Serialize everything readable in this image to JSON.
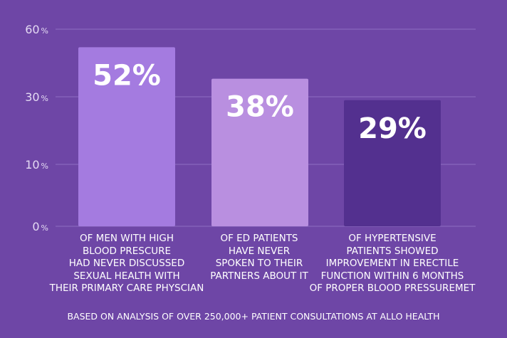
{
  "chart_data": {
    "type": "bar",
    "title": "",
    "xlabel": "",
    "ylabel": "",
    "y_ticks": [
      {
        "value": 0,
        "label": "0%"
      },
      {
        "value": 10,
        "label": "10%"
      },
      {
        "value": 30,
        "label": "30%"
      },
      {
        "value": 60,
        "label": "60%"
      }
    ],
    "grid": true,
    "categories": [
      [
        "OF MEN WITH HIGH",
        "BLOOD PRESCURE",
        "HAD NEVER DISCUSSED",
        "SEXUAL HEALTH WITH",
        "THEIR PRIMARY CARE PHYSCIAN"
      ],
      [
        "OF ED PATIENTS",
        "HAVE NEVER",
        "SPOKEN TO THEIR",
        "PARTNERS ABOUT IT"
      ],
      [
        "OF HYPERTENSIVE",
        "PATIENTS SHOWED",
        "IMPROVEMENT IN ERECTILE",
        "FUNCTION WITHIN 6 MONTHS",
        "OF PROPER BLOOD PRESSUREMET"
      ]
    ],
    "values": [
      52,
      38,
      29
    ],
    "value_labels": [
      "52%",
      "38%",
      "29%"
    ],
    "bar_colors": [
      "#a47be0",
      "#b98fe0",
      "#53308f"
    ],
    "footnote": "BASED ON ANALYSIS OF OVER 250,000+ PATIENT CONSULTATIONS AT ALLO HEALTH"
  }
}
